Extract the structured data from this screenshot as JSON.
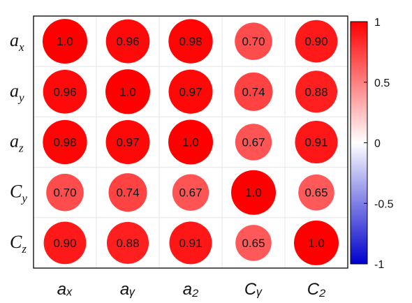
{
  "chart_data": {
    "type": "heatmap",
    "variables": [
      {
        "id": "ax",
        "base": "a",
        "sub": "x"
      },
      {
        "id": "ay",
        "base": "a",
        "sub": "y"
      },
      {
        "id": "az",
        "base": "a",
        "sub": "z"
      },
      {
        "id": "Cy",
        "base": "C",
        "sub": "y"
      },
      {
        "id": "Cz",
        "base": "C",
        "sub": "z"
      }
    ],
    "column_labels": [
      "aₓ",
      "aᵧ",
      "a₂",
      "Cᵧ",
      "C₂"
    ],
    "matrix": [
      [
        1.0,
        0.96,
        0.98,
        0.7,
        0.9
      ],
      [
        0.96,
        1.0,
        0.97,
        0.74,
        0.88
      ],
      [
        0.98,
        0.97,
        1.0,
        0.67,
        0.91
      ],
      [
        0.7,
        0.74,
        0.67,
        1.0,
        0.65
      ],
      [
        0.9,
        0.88,
        0.91,
        0.65,
        1.0
      ]
    ],
    "cell_labels": [
      [
        "1.0",
        "0.96",
        "0.98",
        "0.70",
        "0.90"
      ],
      [
        "0.96",
        "1.0",
        "0.97",
        "0.74",
        "0.88"
      ],
      [
        "0.98",
        "0.97",
        "1.0",
        "0.67",
        "0.91"
      ],
      [
        "0.70",
        "0.74",
        "0.67",
        "1.0",
        "0.65"
      ],
      [
        "0.90",
        "0.88",
        "0.91",
        "0.65",
        "1.0"
      ]
    ],
    "colorbar": {
      "range": [
        -1,
        1
      ],
      "ticks": [
        1,
        0.5,
        0,
        -0.5,
        -1
      ],
      "tick_labels": [
        "1",
        "0.5",
        "0",
        "-0.5",
        "-1"
      ],
      "colors": {
        "high": "#ff0000",
        "mid": "#ffffff",
        "low": "#0000cc"
      }
    },
    "grid": true
  }
}
